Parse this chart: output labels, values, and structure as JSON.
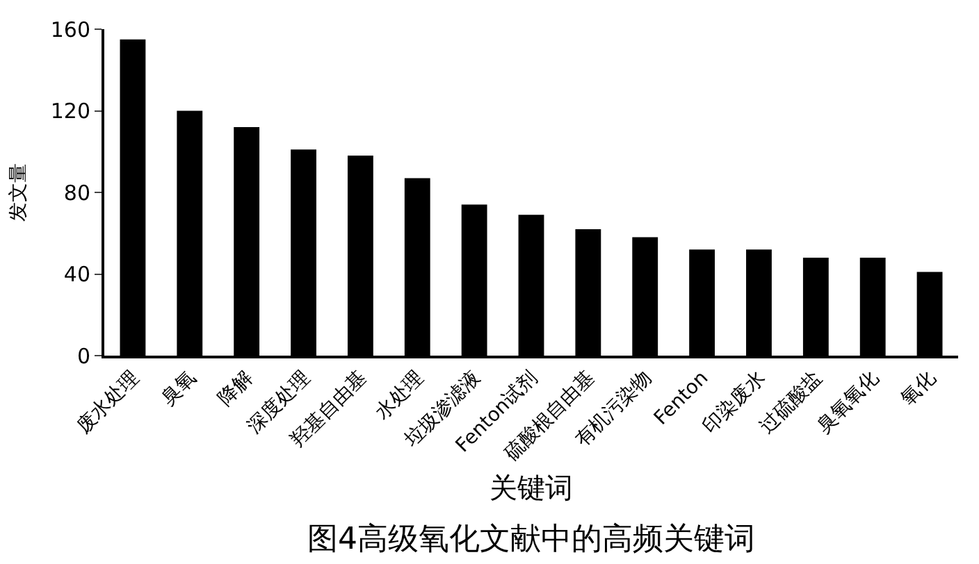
{
  "chart_data": {
    "type": "bar",
    "title": "图4高级氧化文献中的高频关键词",
    "xlabel": "关键词",
    "ylabel": "发文量",
    "categories": [
      "废水处理",
      "臭氧",
      "降解",
      "深度处理",
      "羟基自由基",
      "水处理",
      "垃圾渗滤液",
      "Fenton试剂",
      "硫酸根自由基",
      "有机污染物",
      "Fenton",
      "印染废水",
      "过硫酸盐",
      "臭氧氧化",
      "氧化"
    ],
    "values": [
      155,
      120,
      112,
      101,
      98,
      87,
      74,
      69,
      62,
      58,
      52,
      52,
      48,
      48,
      41
    ],
    "color": "#000000",
    "ylim": [
      0,
      160
    ],
    "yticks": [
      0,
      40,
      80,
      120,
      160
    ]
  }
}
